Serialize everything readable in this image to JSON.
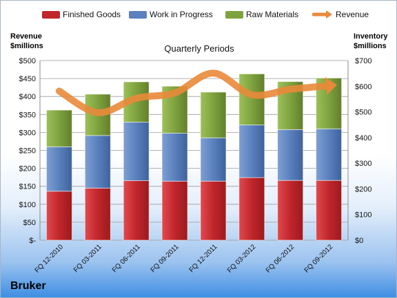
{
  "company": "Bruker",
  "chart_data": {
    "type": "bar",
    "stacked": true,
    "title": "",
    "subtitle": "Quarterly Periods",
    "ylabel_left": [
      "Revenue",
      "$millions"
    ],
    "ylabel_right": [
      "Inventory",
      "$millions"
    ],
    "categories": [
      "FQ 12-2010",
      "FQ 03-2011",
      "FQ 06-2011",
      "FQ 09-2011",
      "FQ 12-2011",
      "FQ 03-2012",
      "FQ 06-2012",
      "FQ 09-2012"
    ],
    "ylim_left": [
      0,
      500
    ],
    "ylim_right": [
      0,
      700
    ],
    "left_ticks": [
      "$-",
      "$50",
      "$100",
      "$150",
      "$200",
      "$250",
      "$300",
      "$350",
      "$400",
      "$450",
      "$500"
    ],
    "right_ticks": [
      "$0",
      "$100",
      "$200",
      "$300",
      "$400",
      "$500",
      "$600",
      "$700"
    ],
    "grid": true,
    "legend_position": "top",
    "series": [
      {
        "name": "Finished Goods",
        "axis": "right",
        "color": "#c0262b",
        "values": [
          191,
          203,
          232,
          230,
          230,
          244,
          233,
          233
        ]
      },
      {
        "name": "Work in Progress",
        "axis": "right",
        "color": "#5a80bd",
        "values": [
          173,
          205,
          228,
          187,
          169,
          205,
          198,
          201
        ]
      },
      {
        "name": "Raw Materials",
        "axis": "right",
        "color": "#7ea23e",
        "values": [
          143,
          161,
          157,
          183,
          178,
          199,
          187,
          198
        ]
      }
    ],
    "line_series": {
      "name": "Revenue",
      "axis": "left",
      "color": "#e98a3a",
      "values": [
        415,
        355,
        395,
        410,
        465,
        405,
        420,
        430
      ]
    }
  }
}
